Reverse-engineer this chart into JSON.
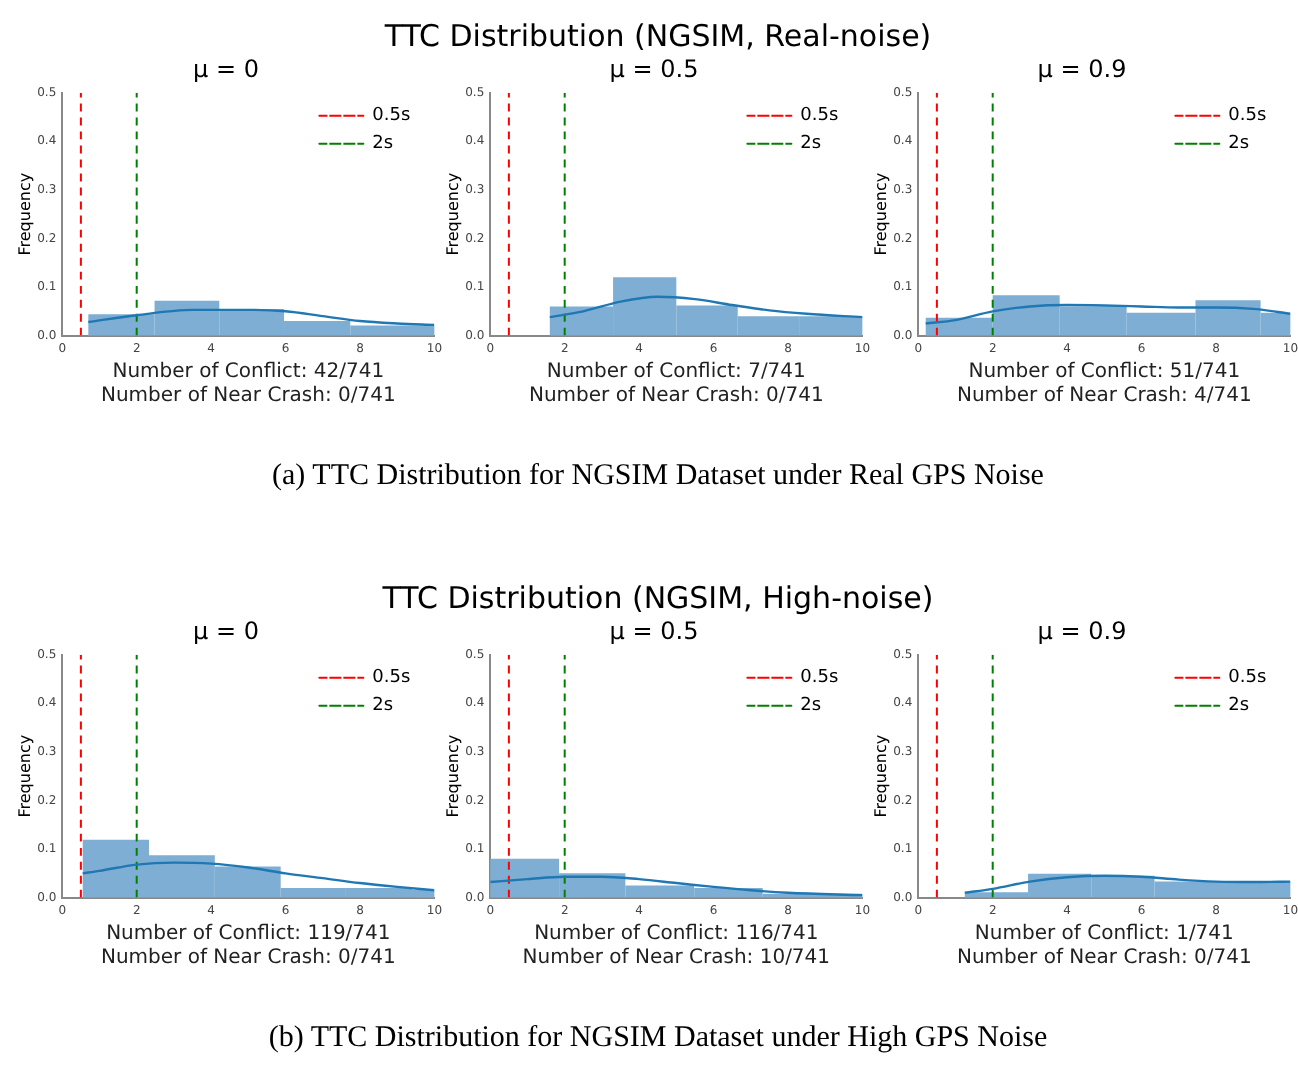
{
  "chart_data": [
    {
      "type": "histogram",
      "title": "μ = 0",
      "xlabel": "Number of Conflict: 42/741\nNumber of Near Crash: 0/741",
      "ylabel": "Frequency",
      "annotations": [
        "TTC Distribution (NGSIM, Real-noise)",
        "(a)  TTC Distribution for NGSIM Dataset under Real GPS Noise"
      ],
      "bins": [
        0.7,
        2.48,
        4.22,
        5.96,
        7.74,
        10
      ],
      "values": [
        0.044,
        0.072,
        0.055,
        0.03,
        0.021
      ],
      "color": "#7eaed3",
      "series": [
        {
          "type": "line",
          "color": "#1f77b4",
          "x": [
            0.7,
            2,
            3.5,
            5,
            6,
            7,
            8,
            9,
            10
          ],
          "values": [
            0.028,
            0.042,
            0.053,
            0.053,
            0.05,
            0.04,
            0.03,
            0.025,
            0.022
          ]
        },
        {
          "type": "line",
          "name": "0.5s",
          "color": "#ff0000",
          "line_style": "dashed",
          "x": [
            0.5,
            0.5
          ],
          "values": [
            0,
            0.5
          ]
        },
        {
          "type": "line",
          "name": "2s",
          "color": "#008000",
          "line_style": "dashed",
          "x": [
            2,
            2
          ],
          "values": [
            0,
            0.5
          ]
        }
      ],
      "xlim": [
        0,
        10
      ],
      "xticks": [
        0,
        2,
        4,
        6,
        8,
        10
      ],
      "ylim": [
        0,
        0.5
      ],
      "yticks": [
        {
          "value": 0,
          "label": "0.0"
        },
        {
          "value": 0.1,
          "label": "0.1"
        },
        {
          "value": 0.2,
          "label": "0.2"
        },
        {
          "value": 0.3,
          "label": "0.3"
        },
        {
          "value": 0.4,
          "label": "0.4"
        },
        {
          "value": 0.5,
          "label": "0.5"
        }
      ],
      "legend": "top right",
      "grid": false
    },
    {
      "type": "histogram",
      "title": "μ = 0.5",
      "xlabel": "Number of Conflict: 7/741\nNumber of Near Crash: 0/741",
      "ylabel": "Frequency",
      "bins": [
        1.6,
        3.3,
        5,
        6.65,
        8.3,
        10
      ],
      "values": [
        0.06,
        0.12,
        0.062,
        0.04,
        0.04
      ],
      "color": "#7eaed3",
      "series": [
        {
          "type": "line",
          "color": "#1f77b4",
          "x": [
            1.6,
            2.5,
            3.5,
            4.5,
            5.5,
            6.5,
            7.5,
            8.5,
            10
          ],
          "values": [
            0.038,
            0.05,
            0.07,
            0.08,
            0.075,
            0.063,
            0.052,
            0.045,
            0.038
          ]
        },
        {
          "type": "line",
          "name": "0.5s",
          "color": "#ff0000",
          "line_style": "dashed",
          "x": [
            0.5,
            0.5
          ],
          "values": [
            0,
            0.5
          ]
        },
        {
          "type": "line",
          "name": "2s",
          "color": "#008000",
          "line_style": "dashed",
          "x": [
            2,
            2
          ],
          "values": [
            0,
            0.5
          ]
        }
      ],
      "xlim": [
        0,
        10
      ],
      "xticks": [
        0,
        2,
        4,
        6,
        8,
        10
      ],
      "ylim": [
        0,
        0.5
      ],
      "yticks": [
        {
          "value": 0,
          "label": "0.0"
        },
        {
          "value": 0.1,
          "label": "0.1"
        },
        {
          "value": 0.2,
          "label": "0.2"
        },
        {
          "value": 0.3,
          "label": "0.3"
        },
        {
          "value": 0.4,
          "label": "0.4"
        },
        {
          "value": 0.5,
          "label": "0.5"
        }
      ],
      "legend": "top right",
      "grid": false
    },
    {
      "type": "histogram",
      "title": "μ = 0.9",
      "xlabel": "Number of Conflict: 51/741\nNumber of Near Crash: 4/741",
      "ylabel": "Frequency",
      "bins": [
        0.2,
        2,
        3.8,
        5.6,
        7.45,
        9.2,
        10
      ],
      "values": [
        0.037,
        0.083,
        0.06,
        0.047,
        0.073,
        0.047
      ],
      "color": "#7eaed3",
      "series": [
        {
          "type": "line",
          "color": "#1f77b4",
          "x": [
            0.2,
            1,
            2,
            3,
            4,
            5,
            6,
            7,
            8,
            9,
            10
          ],
          "values": [
            0.025,
            0.032,
            0.05,
            0.06,
            0.063,
            0.062,
            0.06,
            0.058,
            0.058,
            0.055,
            0.045
          ]
        },
        {
          "type": "line",
          "name": "0.5s",
          "color": "#ff0000",
          "line_style": "dashed",
          "x": [
            0.5,
            0.5
          ],
          "values": [
            0,
            0.5
          ]
        },
        {
          "type": "line",
          "name": "2s",
          "color": "#008000",
          "line_style": "dashed",
          "x": [
            2,
            2
          ],
          "values": [
            0,
            0.5
          ]
        }
      ],
      "xlim": [
        0,
        10
      ],
      "xticks": [
        0,
        2,
        4,
        6,
        8,
        10
      ],
      "ylim": [
        0,
        0.5
      ],
      "yticks": [
        {
          "value": 0,
          "label": "0.0"
        },
        {
          "value": 0.1,
          "label": "0.1"
        },
        {
          "value": 0.2,
          "label": "0.2"
        },
        {
          "value": 0.3,
          "label": "0.3"
        },
        {
          "value": 0.4,
          "label": "0.4"
        },
        {
          "value": 0.5,
          "label": "0.5"
        }
      ],
      "legend": "top right",
      "grid": false
    },
    {
      "type": "histogram",
      "title": "μ = 0",
      "xlabel": "Number of Conflict: 119/741\nNumber of Near Crash: 0/741",
      "ylabel": "Frequency",
      "annotations": [
        "TTC Distribution (NGSIM, High-noise)",
        "(b)  TTC Distribution for NGSIM Dataset under High GPS Noise"
      ],
      "bins": [
        0.55,
        2.33,
        4.1,
        5.87,
        7.6,
        9.4,
        10
      ],
      "values": [
        0.119,
        0.087,
        0.064,
        0.02,
        0.02,
        0.016
      ],
      "color": "#7eaed3",
      "series": [
        {
          "type": "line",
          "color": "#1f77b4",
          "x": [
            0.55,
            1,
            2,
            3,
            4,
            5,
            6,
            7,
            8,
            9,
            10
          ],
          "values": [
            0.05,
            0.055,
            0.068,
            0.072,
            0.07,
            0.062,
            0.05,
            0.04,
            0.03,
            0.022,
            0.015
          ]
        },
        {
          "type": "line",
          "name": "0.5s",
          "color": "#ff0000",
          "line_style": "dashed",
          "x": [
            0.5,
            0.5
          ],
          "values": [
            0,
            0.5
          ]
        },
        {
          "type": "line",
          "name": "2s",
          "color": "#008000",
          "line_style": "dashed",
          "x": [
            2,
            2
          ],
          "values": [
            0,
            0.5
          ]
        }
      ],
      "xlim": [
        0,
        10
      ],
      "xticks": [
        0,
        2,
        4,
        6,
        8,
        10
      ],
      "ylim": [
        0,
        0.5
      ],
      "yticks": [
        {
          "value": 0,
          "label": "0.0"
        },
        {
          "value": 0.1,
          "label": "0.1"
        },
        {
          "value": 0.2,
          "label": "0.2"
        },
        {
          "value": 0.3,
          "label": "0.3"
        },
        {
          "value": 0.4,
          "label": "0.4"
        },
        {
          "value": 0.5,
          "label": "0.5"
        }
      ],
      "legend": "top right",
      "grid": false
    },
    {
      "type": "histogram",
      "title": "μ = 0.5",
      "xlabel": "Number of Conflict: 116/741\nNumber of Near Crash: 10/741",
      "ylabel": "Frequency",
      "bins": [
        0,
        1.85,
        3.63,
        5.48,
        7.32,
        10
      ],
      "values": [
        0.08,
        0.05,
        0.025,
        0.02,
        0.008
      ],
      "color": "#7eaed3",
      "series": [
        {
          "type": "line",
          "color": "#1f77b4",
          "x": [
            0,
            1,
            2,
            3,
            4,
            5,
            6,
            7,
            8,
            10
          ],
          "values": [
            0.032,
            0.038,
            0.043,
            0.043,
            0.038,
            0.03,
            0.022,
            0.015,
            0.01,
            0.005
          ]
        },
        {
          "type": "line",
          "name": "0.5s",
          "color": "#ff0000",
          "line_style": "dashed",
          "x": [
            0.5,
            0.5
          ],
          "values": [
            0,
            0.5
          ]
        },
        {
          "type": "line",
          "name": "2s",
          "color": "#008000",
          "line_style": "dashed",
          "x": [
            2,
            2
          ],
          "values": [
            0,
            0.5
          ]
        }
      ],
      "xlim": [
        0,
        10
      ],
      "xticks": [
        0,
        2,
        4,
        6,
        8,
        10
      ],
      "ylim": [
        0,
        0.5
      ],
      "yticks": [
        {
          "value": 0,
          "label": "0.0"
        },
        {
          "value": 0.1,
          "label": "0.1"
        },
        {
          "value": 0.2,
          "label": "0.2"
        },
        {
          "value": 0.3,
          "label": "0.3"
        },
        {
          "value": 0.4,
          "label": "0.4"
        },
        {
          "value": 0.5,
          "label": "0.5"
        }
      ],
      "legend": "top right",
      "grid": false
    },
    {
      "type": "histogram",
      "title": "μ = 0.9",
      "xlabel": "Number of Conflict: 1/741\nNumber of Near Crash: 0/741",
      "ylabel": "Frequency",
      "bins": [
        1.25,
        2.95,
        4.65,
        6.35,
        10
      ],
      "values": [
        0.011,
        0.049,
        0.045,
        0.033
      ],
      "color": "#7eaed3",
      "series": [
        {
          "type": "line",
          "color": "#1f77b4",
          "x": [
            1.25,
            2,
            3,
            4,
            5,
            6,
            7,
            8,
            9,
            10
          ],
          "values": [
            0.01,
            0.018,
            0.033,
            0.042,
            0.045,
            0.043,
            0.037,
            0.033,
            0.032,
            0.033
          ]
        },
        {
          "type": "line",
          "name": "0.5s",
          "color": "#ff0000",
          "line_style": "dashed",
          "x": [
            0.5,
            0.5
          ],
          "values": [
            0,
            0.5
          ]
        },
        {
          "type": "line",
          "name": "2s",
          "color": "#008000",
          "line_style": "dashed",
          "x": [
            2,
            2
          ],
          "values": [
            0,
            0.5
          ]
        }
      ],
      "xlim": [
        0,
        10
      ],
      "xticks": [
        0,
        2,
        4,
        6,
        8,
        10
      ],
      "ylim": [
        0,
        0.5
      ],
      "yticks": [
        {
          "value": 0,
          "label": "0.0"
        },
        {
          "value": 0.1,
          "label": "0.1"
        },
        {
          "value": 0.2,
          "label": "0.2"
        },
        {
          "value": 0.3,
          "label": "0.3"
        },
        {
          "value": 0.4,
          "label": "0.4"
        },
        {
          "value": 0.5,
          "label": "0.5"
        }
      ],
      "legend": "top right",
      "grid": false
    }
  ]
}
